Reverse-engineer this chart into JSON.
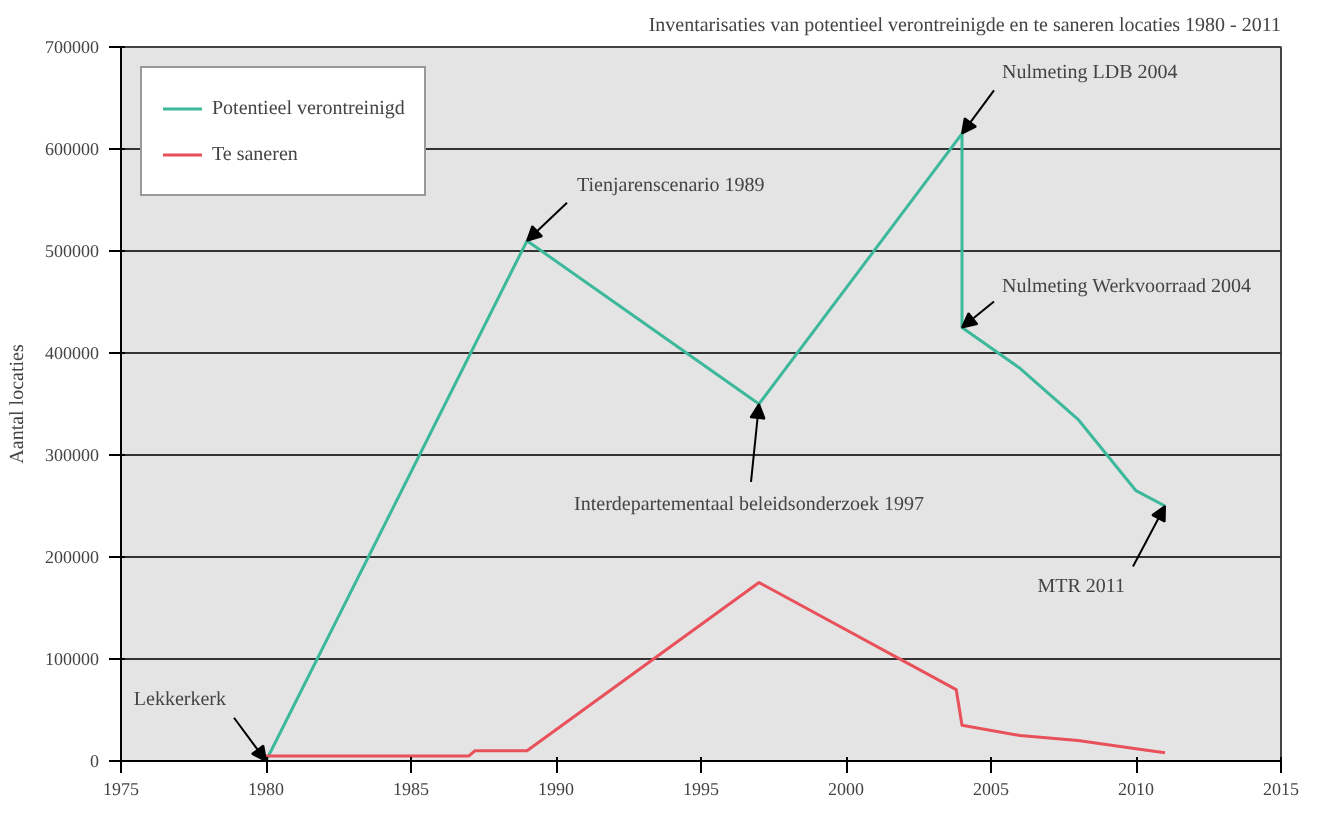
{
  "chart_data": {
    "type": "line",
    "title": "Inventarisaties van potentieel verontreinigde en te saneren locaties 1980 - 2011",
    "ylabel": "Aantal locaties",
    "xlim": [
      1975,
      2015
    ],
    "xticks": [
      1975,
      1980,
      1985,
      1990,
      1995,
      2000,
      2005,
      2010,
      2015
    ],
    "ylim": [
      0,
      700000
    ],
    "yticks": [
      0,
      100000,
      200000,
      300000,
      400000,
      500000,
      600000,
      700000
    ],
    "grid": "y",
    "legend": "top left",
    "series": [
      {
        "name": "Potentieel verontreinigd",
        "color": "#3cb89a",
        "x": [
          1980,
          1989,
          1997,
          2004,
          2004,
          2006,
          2008,
          2010,
          2011
        ],
        "values": [
          0,
          510000,
          350000,
          615000,
          425000,
          385000,
          335000,
          265000,
          250000
        ]
      },
      {
        "name": "Te saneren",
        "color": "#e8505a",
        "x": [
          1980,
          1987,
          1987.2,
          1989,
          1997,
          2003.8,
          2004,
          2006,
          2008,
          2010,
          2011
        ],
        "values": [
          5000,
          5000,
          10000,
          10000,
          175000,
          70000,
          35000,
          25000,
          20000,
          12000,
          8000
        ]
      }
    ],
    "annotations": [
      {
        "text": "Lekkerkerk",
        "x": 1980,
        "y": 0
      },
      {
        "text": "Tienjarenscenario 1989",
        "x": 1989,
        "y": 510000
      },
      {
        "text": "Interdepartementaal beleidsonderzoek 1997",
        "x": 1997,
        "y": 350000
      },
      {
        "text": "Nulmeting LDB 2004",
        "x": 2004,
        "y": 615000
      },
      {
        "text": "Nulmeting Werkvoorraad 2004",
        "x": 2004,
        "y": 425000
      },
      {
        "text": "MTR 2011",
        "x": 2011,
        "y": 250000
      }
    ]
  }
}
